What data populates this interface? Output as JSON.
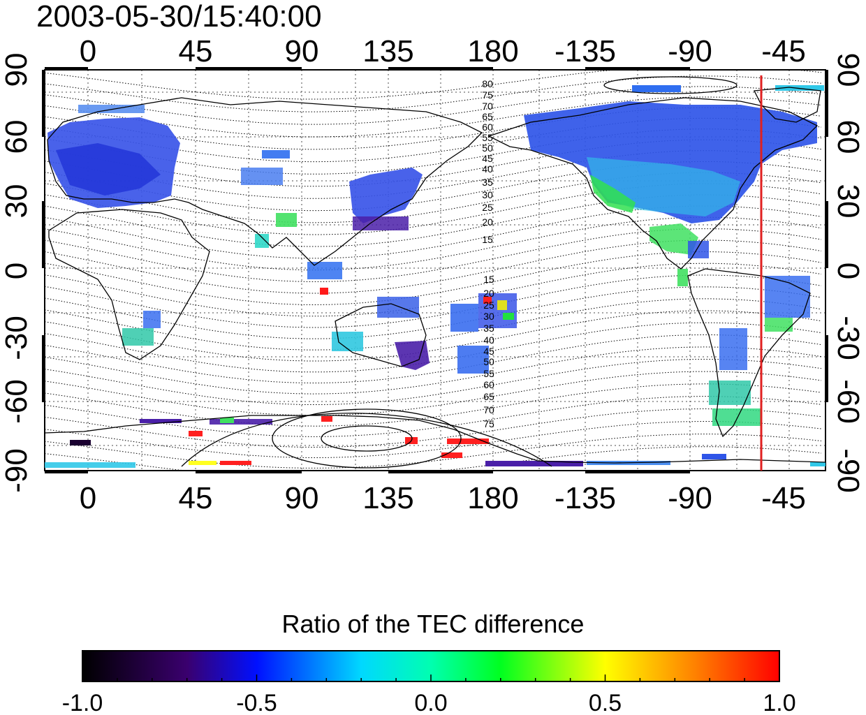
{
  "title": "2003-05-30/15:40:00",
  "map": {
    "lon_tick_labels": [
      "0",
      "45",
      "90",
      "135",
      "180",
      "-135",
      "-90",
      "-45"
    ],
    "lat_tick_labels": [
      "90",
      "60",
      "30",
      "0",
      "-30",
      "-60",
      "-90"
    ],
    "contour_labels_north": [
      "80",
      "75",
      "70",
      "65",
      "60",
      "55",
      "50",
      "45",
      "40",
      "35",
      "30",
      "25",
      "20",
      "15"
    ],
    "contour_labels_south": [
      "15",
      "20",
      "25",
      "30",
      "35",
      "40",
      "45",
      "50",
      "55",
      "60",
      "65",
      "70",
      "75"
    ],
    "marker_line_longitude": -55,
    "marker_line_color": "#e02020",
    "grid": true
  },
  "colorbar": {
    "title": "Ratio of the TEC difference",
    "tick_labels": [
      "-1.0",
      "-0.5",
      "0.0",
      "0.5",
      "1.0"
    ],
    "range": [
      -1.0,
      1.0
    ],
    "colormap": [
      "#000000",
      "#3a006e",
      "#0010ff",
      "#00ffff",
      "#00ff20",
      "#ffff00",
      "#ff0000"
    ]
  }
}
